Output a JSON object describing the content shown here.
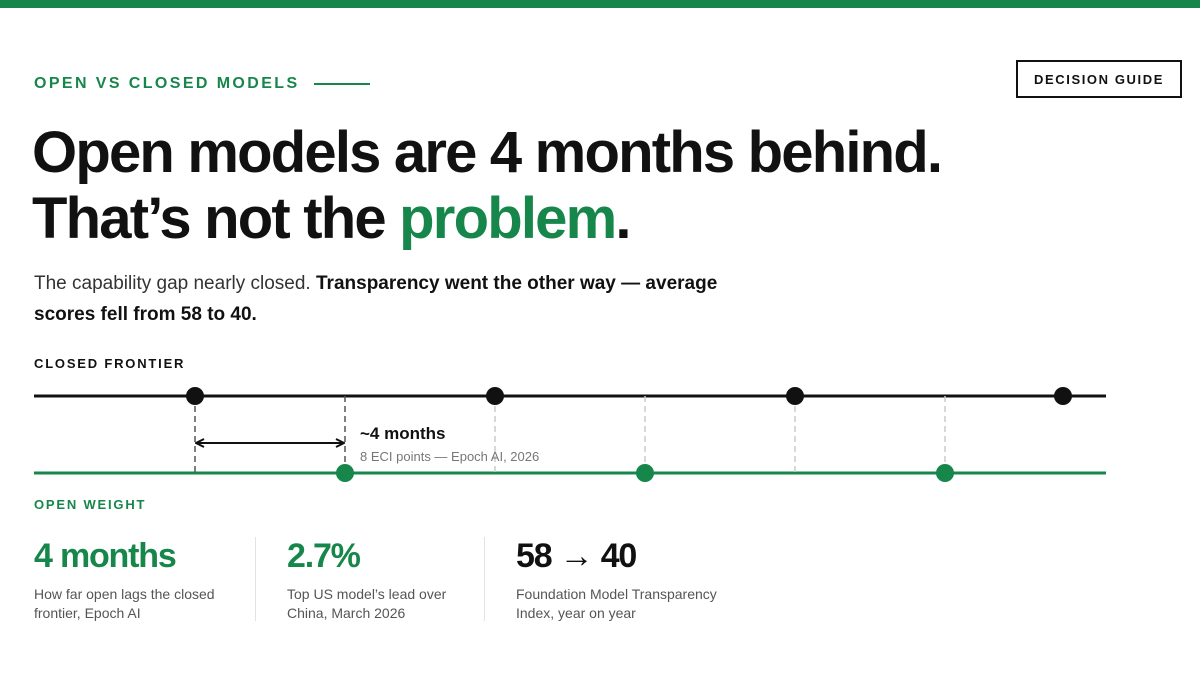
{
  "theme": {
    "accent": "#17864b",
    "ink": "#111111"
  },
  "header": {
    "eyebrow": "OPEN VS CLOSED MODELS",
    "guide_label": "DECISION GUIDE"
  },
  "headline": {
    "line1": "Open models are 4 months behind.",
    "line2_pre": "That’s not the ",
    "line2_accent": "problem",
    "line2_post": "."
  },
  "subhead": {
    "normal": "The capability gap nearly closed. ",
    "bold": "Transparency went the other way — average scores fell from 58 to 40."
  },
  "diagram": {
    "closed_label": "CLOSED FRONTIER",
    "open_label": "OPEN WEIGHT",
    "lag_label": "~4 months",
    "lag_sublabel": "8 ECI points — Epoch AI, 2026"
  },
  "stats": [
    {
      "value": "4 months",
      "desc_line1": "How far open lags the closed",
      "desc_line2": "frontier, Epoch AI"
    },
    {
      "value": "2.7%",
      "desc_line1": "Top US model’s lead over",
      "desc_line2": "China, March 2026"
    },
    {
      "value": "58 → 40",
      "desc_line1": "Foundation Model Transparency",
      "desc_line2": "Index, year on year"
    }
  ]
}
